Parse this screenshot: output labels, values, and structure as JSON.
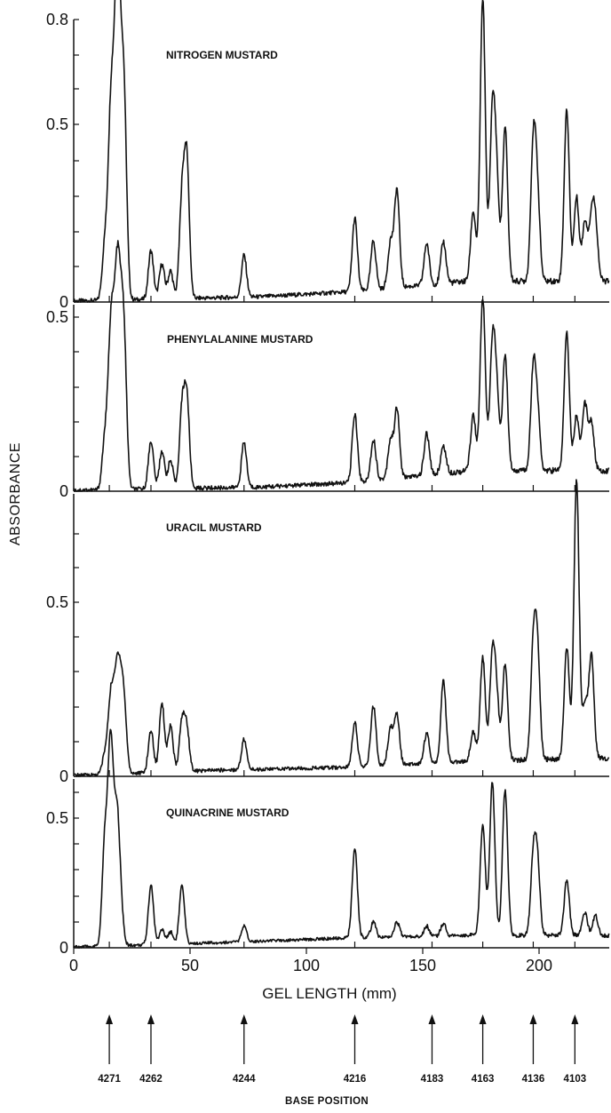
{
  "figure": {
    "ylabel": "ABSORBANCE",
    "xlabel": "GEL LENGTH (mm)",
    "base_axis_title": "BASE POSITION",
    "x_ticks": [
      "0",
      "50",
      "100",
      "150",
      "200"
    ],
    "line_color": "#111111",
    "background": "#ffffff"
  },
  "chart_data": [
    {
      "type": "line",
      "title": "NITROGEN MUSTARD",
      "ylim": [
        0,
        0.8
      ],
      "yticks": [
        "0.8",
        "0.5",
        "0"
      ],
      "xlim": [
        0,
        230
      ],
      "peaks": [
        [
          13.3,
          0.15
        ],
        [
          15.6,
          0.37
        ],
        [
          16.9,
          0.34
        ],
        [
          18.7,
          0.78
        ],
        [
          20.3,
          0.38
        ],
        [
          21.8,
          0.47
        ],
        [
          33.2,
          0.14
        ],
        [
          37.9,
          0.1
        ],
        [
          41.6,
          0.08
        ],
        [
          46.5,
          0.28
        ],
        [
          48.6,
          0.39
        ],
        [
          73.2,
          0.12
        ],
        [
          120.8,
          0.21
        ],
        [
          128.8,
          0.14
        ],
        [
          136.1,
          0.13
        ],
        [
          138.9,
          0.28
        ],
        [
          151.7,
          0.12
        ],
        [
          158.9,
          0.12
        ],
        [
          171.7,
          0.2
        ],
        [
          175.8,
          0.81
        ],
        [
          179.9,
          0.45
        ],
        [
          181.7,
          0.28
        ],
        [
          185.4,
          0.44
        ],
        [
          197.5,
          0.38
        ],
        [
          199.3,
          0.23
        ],
        [
          211.9,
          0.49
        ],
        [
          216.1,
          0.24
        ],
        [
          219.7,
          0.17
        ],
        [
          222.5,
          0.16
        ],
        [
          224.2,
          0.16
        ]
      ],
      "baseline": [
        [
          0,
          0.003
        ],
        [
          80,
          0.015
        ],
        [
          120,
          0.03
        ],
        [
          170,
          0.06
        ],
        [
          230,
          0.06
        ]
      ]
    },
    {
      "type": "line",
      "title": "PHENYLALANINE MUSTARD",
      "ylim": [
        0,
        0.53
      ],
      "yticks": [
        "0.5",
        "0"
      ],
      "xlim": [
        0,
        230
      ],
      "peaks": [
        [
          13.3,
          0.14
        ],
        [
          15.6,
          0.32
        ],
        [
          16.9,
          0.28
        ],
        [
          18.7,
          0.51
        ],
        [
          20.3,
          0.32
        ],
        [
          21.8,
          0.35
        ],
        [
          33.2,
          0.14
        ],
        [
          37.9,
          0.11
        ],
        [
          41.6,
          0.08
        ],
        [
          46.5,
          0.22
        ],
        [
          48.6,
          0.26
        ],
        [
          73.2,
          0.13
        ],
        [
          120.8,
          0.2
        ],
        [
          128.8,
          0.12
        ],
        [
          136.1,
          0.11
        ],
        [
          138.9,
          0.2
        ],
        [
          151.7,
          0.12
        ],
        [
          158.9,
          0.08
        ],
        [
          171.7,
          0.16
        ],
        [
          175.8,
          0.5
        ],
        [
          179.9,
          0.34
        ],
        [
          181.7,
          0.22
        ],
        [
          185.4,
          0.33
        ],
        [
          197.5,
          0.28
        ],
        [
          199.3,
          0.16
        ],
        [
          211.9,
          0.4
        ],
        [
          216.1,
          0.16
        ],
        [
          219.7,
          0.19
        ],
        [
          222.5,
          0.14
        ]
      ],
      "baseline": [
        [
          0,
          0.003
        ],
        [
          80,
          0.012
        ],
        [
          120,
          0.025
        ],
        [
          170,
          0.06
        ],
        [
          230,
          0.06
        ]
      ]
    },
    {
      "type": "line",
      "title": "URACIL MUSTARD",
      "ylim": [
        0,
        0.92
      ],
      "yticks": [
        "0.5",
        "0"
      ],
      "xlim": [
        0,
        230
      ],
      "peaks": [
        [
          13.3,
          0.06
        ],
        [
          15.6,
          0.18
        ],
        [
          16.9,
          0.15
        ],
        [
          18.7,
          0.28
        ],
        [
          20.3,
          0.2
        ],
        [
          21.8,
          0.18
        ],
        [
          33.2,
          0.14
        ],
        [
          37.9,
          0.23
        ],
        [
          41.6,
          0.15
        ],
        [
          46.5,
          0.16
        ],
        [
          48.6,
          0.14
        ],
        [
          73.2,
          0.1
        ],
        [
          120.8,
          0.15
        ],
        [
          128.8,
          0.2
        ],
        [
          136.1,
          0.12
        ],
        [
          138.9,
          0.17
        ],
        [
          151.7,
          0.1
        ],
        [
          158.9,
          0.27
        ],
        [
          171.7,
          0.1
        ],
        [
          175.8,
          0.34
        ],
        [
          179.9,
          0.33
        ],
        [
          181.7,
          0.2
        ],
        [
          185.4,
          0.32
        ],
        [
          197.5,
          0.35
        ],
        [
          199.3,
          0.34
        ],
        [
          211.9,
          0.37
        ],
        [
          216.1,
          0.92
        ],
        [
          219.7,
          0.18
        ],
        [
          222.5,
          0.34
        ]
      ],
      "baseline": [
        [
          0,
          0.003
        ],
        [
          60,
          0.02
        ],
        [
          120,
          0.03
        ],
        [
          170,
          0.05
        ],
        [
          230,
          0.06
        ]
      ]
    },
    {
      "type": "line",
      "title": "QUINACRINE MUSTARD",
      "ylim": [
        0,
        0.66
      ],
      "yticks": [
        "0.5",
        "0"
      ],
      "xlim": [
        0,
        230
      ],
      "peaks": [
        [
          13.3,
          0.4
        ],
        [
          15.6,
          0.66
        ],
        [
          16.9,
          0.28
        ],
        [
          18.7,
          0.45
        ],
        [
          20.3,
          0.12
        ],
        [
          33.2,
          0.24
        ],
        [
          37.9,
          0.06
        ],
        [
          41.6,
          0.05
        ],
        [
          46.5,
          0.23
        ],
        [
          73.2,
          0.06
        ],
        [
          120.8,
          0.36
        ],
        [
          128.8,
          0.06
        ],
        [
          138.9,
          0.06
        ],
        [
          151.7,
          0.04
        ],
        [
          158.9,
          0.05
        ],
        [
          175.8,
          0.44
        ],
        [
          179.9,
          0.61
        ],
        [
          185.4,
          0.58
        ],
        [
          197.5,
          0.3
        ],
        [
          199.3,
          0.28
        ],
        [
          211.9,
          0.22
        ],
        [
          219.7,
          0.09
        ],
        [
          224.2,
          0.08
        ]
      ],
      "baseline": [
        [
          0,
          0.003
        ],
        [
          60,
          0.02
        ],
        [
          120,
          0.04
        ],
        [
          170,
          0.05
        ],
        [
          230,
          0.05
        ]
      ]
    }
  ],
  "base_positions": [
    {
      "label": "4271",
      "x_mm": 15.3
    },
    {
      "label": "4262",
      "x_mm": 33.2
    },
    {
      "label": "4244",
      "x_mm": 73.2
    },
    {
      "label": "4216",
      "x_mm": 120.8
    },
    {
      "label": "4183",
      "x_mm": 154.0
    },
    {
      "label": "4163",
      "x_mm": 175.8
    },
    {
      "label": "4136",
      "x_mm": 197.5
    },
    {
      "label": "4103",
      "x_mm": 215.4
    }
  ]
}
